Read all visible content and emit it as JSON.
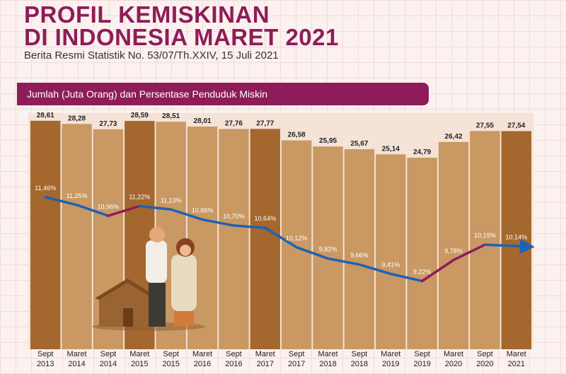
{
  "chart_data": {
    "type": "combo",
    "title": [
      "PROFIL KEMISKINAN",
      "DI INDONESIA MARET 2021"
    ],
    "subtitle": "Berita Resmi Statistik No. 53/07/Th.XXIV, 15 Juli 2021",
    "banner": "Jumlah (Juta Orang) dan Persentase Penduduk Miskin",
    "categories": [
      "Sept 2013",
      "Maret 2014",
      "Sept 2014",
      "Maret 2015",
      "Sept 2015",
      "Maret 2016",
      "Sept 2016",
      "Maret 2017",
      "Sept 2017",
      "Maret 2018",
      "Sept 2018",
      "Maret 2019",
      "Sept 2019",
      "Maret 2020",
      "Sept 2020",
      "Maret 2021"
    ],
    "bars": {
      "values": [
        28.61,
        28.28,
        27.73,
        28.59,
        28.51,
        28.01,
        27.76,
        27.77,
        26.58,
        25.95,
        25.67,
        25.14,
        24.79,
        26.42,
        27.55,
        27.54
      ],
      "value_labels": [
        "28,61",
        "28,28",
        "27,73",
        "28,59",
        "28,51",
        "28,01",
        "27,76",
        "27,77",
        "26,58",
        "25,95",
        "25,67",
        "25,14",
        "24,79",
        "26,42",
        "27,55",
        "27,54"
      ],
      "colors": [
        "#a4672d",
        "#c99863",
        "#c99863",
        "#a4672d",
        "#c99863",
        "#c99863",
        "#c99863",
        "#a4672d",
        "#c99863",
        "#c99863",
        "#c99863",
        "#c99863",
        "#c99863",
        "#c99863",
        "#c99863",
        "#a4672d"
      ]
    },
    "line": {
      "values": [
        11.46,
        11.25,
        10.96,
        11.22,
        11.13,
        10.86,
        10.7,
        10.64,
        10.12,
        9.82,
        9.66,
        9.41,
        9.22,
        9.78,
        10.19,
        10.14
      ],
      "value_labels": [
        "11,46%",
        "11,25%",
        "10,96%",
        "11,22%",
        "11,13%",
        "10,86%",
        "10,70%",
        "10,64%",
        "10,12%",
        "9,82%",
        "9,66%",
        "9,41%",
        "9,22%",
        "9,78%",
        "10,19%",
        "10,14%"
      ],
      "color": "#1d62b4",
      "rise_color": "#8e1c58"
    },
    "ylim": [
      5,
      29.4
    ],
    "y2lim": [
      7.4,
      13.7
    ]
  }
}
